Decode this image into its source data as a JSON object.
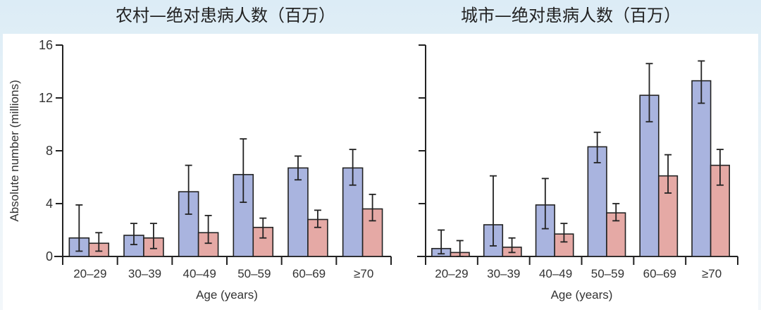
{
  "titles": {
    "left": "农村—绝对患病人数（百万）",
    "right": "城市—绝对患病人数（百万）"
  },
  "colors": {
    "blue": "#a9b4df",
    "pink": "#e5a9a5",
    "stroke": "#222222"
  },
  "chart_data": [
    {
      "type": "bar",
      "title": "农村—绝对患病人数（百万）",
      "xlabel": "Age (years)",
      "ylabel": "Absolute number (millions)",
      "ylim": [
        0,
        16
      ],
      "yticks": [
        0,
        4,
        8,
        12,
        16
      ],
      "grid": false,
      "categories": [
        "20–29",
        "30–39",
        "40–49",
        "50–59",
        "60–69",
        "≥70"
      ],
      "series": [
        {
          "name": "blue",
          "color": "#a9b4df",
          "values": [
            1.4,
            1.6,
            4.9,
            6.2,
            6.7,
            6.7
          ],
          "err_low": [
            0.4,
            0.9,
            3.2,
            4.1,
            5.8,
            5.4
          ],
          "err_high": [
            3.9,
            2.5,
            6.9,
            8.9,
            7.6,
            8.1
          ]
        },
        {
          "name": "pink",
          "color": "#e5a9a5",
          "values": [
            1.0,
            1.4,
            1.8,
            2.2,
            2.8,
            3.6
          ],
          "err_low": [
            0.4,
            0.6,
            1.0,
            1.4,
            2.2,
            2.7
          ],
          "err_high": [
            1.8,
            2.5,
            3.1,
            2.9,
            3.5,
            4.7
          ]
        }
      ]
    },
    {
      "type": "bar",
      "title": "城市—绝对患病人数（百万）",
      "xlabel": "Age (years)",
      "ylabel": "",
      "ylim": [
        0,
        16
      ],
      "yticks": [
        0,
        4,
        8,
        12,
        16
      ],
      "grid": false,
      "categories": [
        "20–29",
        "30–39",
        "40–49",
        "50–59",
        "60–69",
        "≥70"
      ],
      "series": [
        {
          "name": "blue",
          "color": "#a9b4df",
          "values": [
            0.6,
            2.4,
            3.9,
            8.3,
            12.2,
            13.3
          ],
          "err_low": [
            0.2,
            0.8,
            2.1,
            7.1,
            10.2,
            11.6
          ],
          "err_high": [
            2.0,
            6.1,
            5.9,
            9.4,
            14.6,
            14.8
          ]
        },
        {
          "name": "pink",
          "color": "#e5a9a5",
          "values": [
            0.3,
            0.7,
            1.7,
            3.3,
            6.1,
            6.9
          ],
          "err_low": [
            0.0,
            0.3,
            1.1,
            2.7,
            4.8,
            5.4
          ],
          "err_high": [
            1.2,
            1.4,
            2.5,
            4.0,
            7.7,
            8.1
          ]
        }
      ]
    }
  ]
}
